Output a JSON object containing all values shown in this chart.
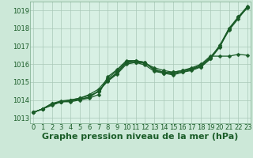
{
  "background_color": "#cce8d8",
  "grid_color": "#aac8b8",
  "plot_bg": "#d8f0e4",
  "xlabel": "Graphe pression niveau de la mer (hPa)",
  "xlabel_fontsize": 8,
  "ylabel_values": [
    1013,
    1014,
    1015,
    1016,
    1017,
    1018,
    1019
  ],
  "xlim": [
    -0.3,
    23.3
  ],
  "ylim": [
    1012.7,
    1019.5
  ],
  "line_color": "#1a5c28",
  "marker": "D",
  "marker_size": 2.5,
  "line_width": 0.9,
  "series": [
    [
      1013.3,
      1013.5,
      1013.7,
      1013.9,
      1013.9,
      1014.0,
      1014.1,
      1014.3,
      1015.3,
      1015.7,
      1016.2,
      1016.2,
      1016.1,
      1015.7,
      1015.55,
      1015.5,
      1015.6,
      1015.75,
      1015.85,
      1016.3,
      1017.0,
      1017.9,
      1018.55,
      1019.2
    ],
    [
      1013.3,
      1013.5,
      1013.8,
      1013.9,
      1014.0,
      1014.1,
      1014.25,
      1014.45,
      1015.1,
      1015.5,
      1016.1,
      1016.1,
      1016.05,
      1015.8,
      1015.65,
      1015.55,
      1015.65,
      1015.75,
      1015.95,
      1016.35,
      1017.05,
      1018.0,
      1018.65,
      1019.25
    ],
    [
      1013.3,
      1013.5,
      1013.75,
      1013.9,
      1013.95,
      1014.05,
      1014.15,
      1014.5,
      1015.05,
      1015.45,
      1016.0,
      1016.1,
      1015.95,
      1015.6,
      1015.5,
      1015.45,
      1015.55,
      1015.7,
      1015.9,
      1016.4,
      1017.0,
      1018.0,
      1018.6,
      1019.2
    ],
    [
      1013.3,
      1013.5,
      1013.75,
      1013.9,
      1013.95,
      1014.05,
      1014.15,
      1014.5,
      1015.1,
      1015.55,
      1016.1,
      1016.15,
      1016.05,
      1015.7,
      1015.55,
      1015.55,
      1015.65,
      1015.8,
      1016.0,
      1016.45,
      1016.45,
      1016.45,
      1016.55,
      1016.5
    ],
    [
      1013.3,
      1013.5,
      1013.8,
      1013.95,
      1014.0,
      1014.1,
      1014.3,
      1014.6,
      1015.2,
      1015.65,
      1016.15,
      1016.2,
      1016.1,
      1015.65,
      1015.5,
      1015.4,
      1015.55,
      1015.65,
      1015.85,
      1016.3,
      1016.95,
      1017.95,
      1018.65,
      1019.15
    ]
  ],
  "tick_fontsize": 6,
  "tick_color": "#1a5c28"
}
